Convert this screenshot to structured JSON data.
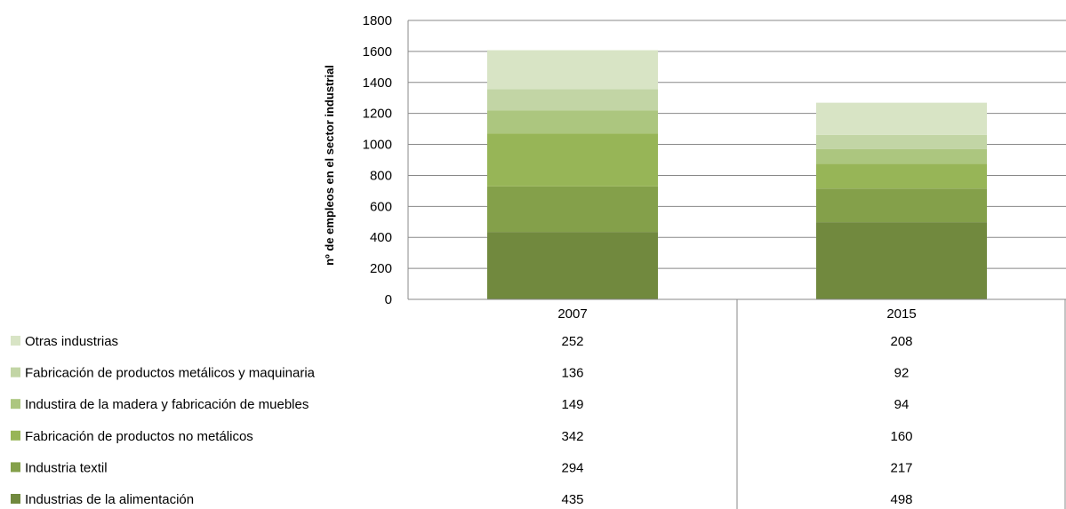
{
  "chart_data": {
    "type": "bar",
    "stacked": true,
    "categories": [
      "2007",
      "2015"
    ],
    "ylabel": "nº de empleos en el sector industrial",
    "ylim": [
      0,
      1800
    ],
    "yticks": [
      "0",
      "200",
      "400",
      "600",
      "800",
      "1000",
      "1200",
      "1400",
      "1600",
      "1800"
    ],
    "grid": true,
    "legend_placement": "data-table-left",
    "series": [
      {
        "name": "Industrias de la alimentación",
        "values": [
          435,
          498
        ],
        "color": "#71893E"
      },
      {
        "name": "Industria textil",
        "values": [
          294,
          217
        ],
        "color": "#84A04A"
      },
      {
        "name": "Fabricación de productos no metálicos",
        "values": [
          342,
          160
        ],
        "color": "#97B557"
      },
      {
        "name": "Industira de la madera y fabricación de muebles",
        "values": [
          149,
          94
        ],
        "color": "#ACC67F"
      },
      {
        "name": "Fabricación de productos metálicos y maquinaria",
        "values": [
          136,
          92
        ],
        "color": "#C2D5A5"
      },
      {
        "name": "Otras industrias",
        "values": [
          252,
          208
        ],
        "color": "#D8E4C5"
      }
    ]
  }
}
